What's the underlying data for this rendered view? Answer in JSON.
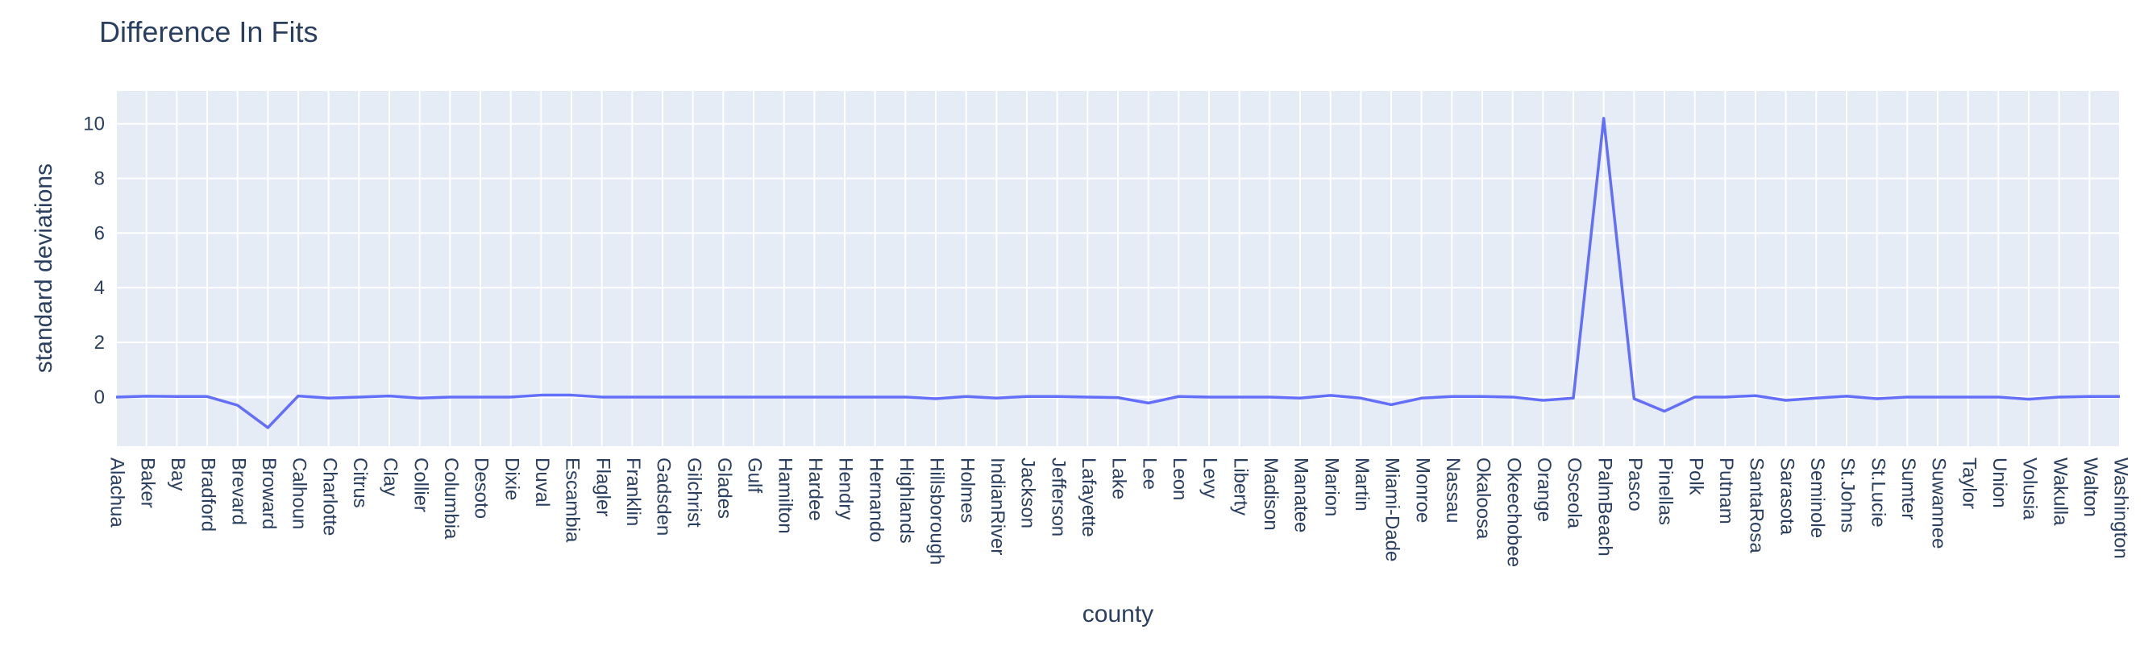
{
  "chart_data": {
    "type": "line",
    "title": "Difference In Fits",
    "xlabel": "county",
    "ylabel": "standard deviations",
    "ylim": [
      -1.8,
      11.2
    ],
    "yticks": [
      0,
      2,
      4,
      6,
      8,
      10
    ],
    "grid": true,
    "colors": {
      "plot_background": "#e5ecf6",
      "grid": "#ffffff",
      "line": "#636efa",
      "text": "#2a3f5f"
    },
    "categories": [
      "Alachua",
      "Baker",
      "Bay",
      "Bradford",
      "Brevard",
      "Broward",
      "Calhoun",
      "Charlotte",
      "Citrus",
      "Clay",
      "Collier",
      "Columbia",
      "Desoto",
      "Dixie",
      "Duval",
      "Escambia",
      "Flagler",
      "Franklin",
      "Gadsden",
      "Gilchrist",
      "Glades",
      "Gulf",
      "Hamilton",
      "Hardee",
      "Hendry",
      "Hernando",
      "Highlands",
      "Hillsborough",
      "Holmes",
      "IndianRiver",
      "Jackson",
      "Jefferson",
      "Lafayette",
      "Lake",
      "Lee",
      "Leon",
      "Levy",
      "Liberty",
      "Madison",
      "Manatee",
      "Marion",
      "Martin",
      "Miami-Dade",
      "Monroe",
      "Nassau",
      "Okaloosa",
      "Okeechobee",
      "Orange",
      "Osceola",
      "PalmBeach",
      "Pasco",
      "Pinellas",
      "Polk",
      "Putnam",
      "SantaRosa",
      "Sarasota",
      "Seminole",
      "St.Johns",
      "St.Lucie",
      "Sumter",
      "Suwannee",
      "Taylor",
      "Union",
      "Volusia",
      "Wakulla",
      "Walton",
      "Washington"
    ],
    "series": [
      {
        "values": [
          0,
          0.03,
          0.02,
          0.02,
          -0.3,
          -1.12,
          0.04,
          -0.04,
          0.0,
          0.04,
          -0.04,
          0.0,
          0.0,
          0.0,
          0.07,
          0.07,
          0.0,
          0.0,
          0.0,
          0.0,
          0.0,
          0.0,
          0.0,
          0.0,
          0.0,
          0.0,
          0.0,
          -0.06,
          0.02,
          -0.04,
          0.02,
          0.02,
          0.0,
          -0.02,
          -0.22,
          0.02,
          0.0,
          0.0,
          0.0,
          -0.04,
          0.06,
          -0.04,
          -0.28,
          -0.04,
          0.02,
          0.02,
          0.0,
          -0.12,
          -0.04,
          10.2,
          -0.06,
          -0.52,
          0.0,
          0.0,
          0.05,
          -0.12,
          -0.04,
          0.03,
          -0.06,
          0.0,
          0.0,
          0.0,
          0.0,
          -0.08,
          0.0,
          0.02,
          0.02
        ]
      }
    ]
  }
}
